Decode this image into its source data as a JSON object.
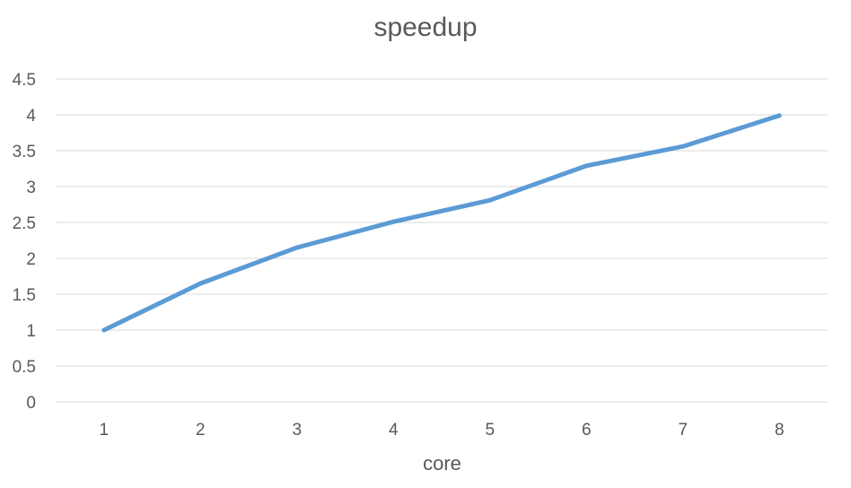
{
  "chart_data": {
    "type": "line",
    "title": "speedup",
    "xlabel": "core",
    "ylabel": "",
    "categories": [
      "1",
      "2",
      "3",
      "4",
      "5",
      "6",
      "7",
      "8"
    ],
    "series": [
      {
        "values": [
          1.0,
          1.65,
          2.15,
          2.51,
          2.81,
          3.29,
          3.56,
          3.99
        ]
      }
    ],
    "ylim": [
      0,
      4.5
    ],
    "yticks": [
      "0",
      "0.5",
      "1",
      "1.5",
      "2",
      "2.5",
      "3",
      "3.5",
      "4",
      "4.5"
    ],
    "grid": true,
    "legend": "none",
    "colors": {
      "line": "#5b9bd5",
      "grid": "#d9d9d9",
      "text": "#595959"
    }
  }
}
